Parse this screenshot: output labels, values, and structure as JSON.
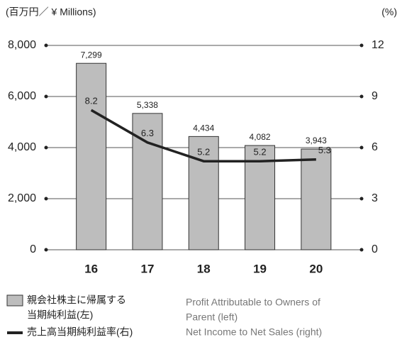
{
  "chart_data": {
    "type": "bar-line",
    "y_label": "(百万円／ ¥ Millions)",
    "y2_label": "(%)",
    "categories": [
      "16",
      "17",
      "18",
      "19",
      "20"
    ],
    "series": [
      {
        "name": [
          "親会社株主に帰属する",
          "当期純利益(左)"
        ],
        "name_en": [
          "Profit Attributable to Owners of",
          "Parent (left)"
        ],
        "type": "bar",
        "color": "#bdbdbd",
        "values": [
          7299,
          5338,
          4434,
          4082,
          3943
        ],
        "value_labels": [
          "7,299",
          "5,338",
          "4,434",
          "4,082",
          "3,943"
        ]
      },
      {
        "name": "売上高当期純利益率(右)",
        "name_en": "Net Income to Net Sales (right)",
        "type": "line",
        "axis": "y2",
        "color": "#222222",
        "values": [
          8.2,
          6.3,
          5.2,
          5.2,
          5.3
        ]
      }
    ],
    "ylim": [
      0,
      8000
    ],
    "yticks": [
      0,
      {
        "value": 2000,
        "label": "2,000"
      },
      {
        "value": 4000,
        "label": "4,000"
      },
      {
        "value": 6000,
        "label": "6,000"
      },
      {
        "value": 8000,
        "label": "8,000"
      }
    ],
    "y2lim": [
      0,
      12
    ],
    "y2ticks": [
      0,
      3,
      6,
      9,
      12
    ],
    "grid": true
  }
}
